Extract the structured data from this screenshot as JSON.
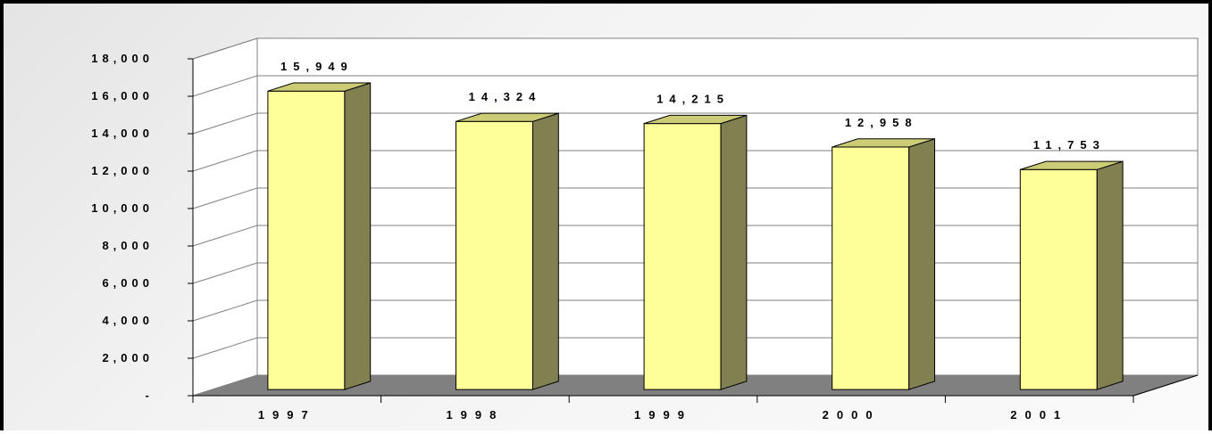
{
  "chart_data": {
    "type": "bar",
    "title": "",
    "xlabel": "",
    "ylabel": "",
    "categories": [
      "1997",
      "1998",
      "1999",
      "2000",
      "2001"
    ],
    "values": [
      15949,
      14324,
      14215,
      12958,
      11753
    ],
    "value_labels": [
      "15,949",
      "14,324",
      "14,215",
      "12,958",
      "11,753"
    ],
    "ylim": [
      0,
      18000
    ],
    "y_ticks": [
      0,
      2000,
      4000,
      6000,
      8000,
      10000,
      12000,
      14000,
      16000,
      18000
    ],
    "y_tick_labels": [
      "-",
      "2,000",
      "4,000",
      "6,000",
      "8,000",
      "10,000",
      "12,000",
      "14,000",
      "16,000",
      "18,000"
    ],
    "grid": true,
    "legend": "none",
    "style": "3d-column",
    "colors": {
      "bar_front": "#ffff99",
      "bar_top": "#cccc77",
      "bar_side": "#808050",
      "floor": "#808080",
      "plot_back": "#ffffff",
      "gridline": "#808080",
      "frame": "#000000"
    }
  }
}
